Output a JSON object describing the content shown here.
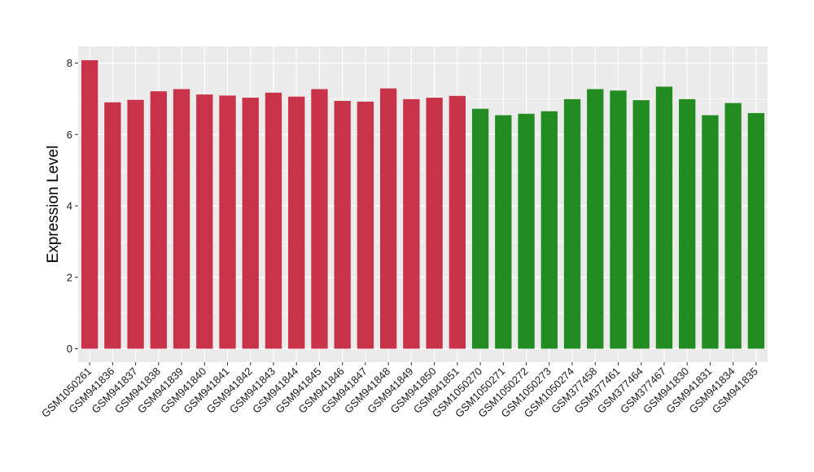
{
  "chart_data": {
    "type": "bar",
    "ylabel": "Expression Level",
    "xlabel": "",
    "title": "",
    "ylim": [
      0,
      8.3
    ],
    "yticks": [
      0,
      2,
      4,
      6,
      8
    ],
    "grid": true,
    "legend": "none",
    "colors": {
      "panel_background": "#ebebeb",
      "grid_major": "#ffffff",
      "group_a": "#c8334a",
      "group_b": "#228b22"
    },
    "categories": [
      "GSM1050261",
      "GSM941836",
      "GSM941837",
      "GSM941838",
      "GSM941839",
      "GSM941840",
      "GSM941841",
      "GSM941842",
      "GSM941843",
      "GSM941844",
      "GSM941845",
      "GSM941846",
      "GSM941847",
      "GSM941848",
      "GSM941849",
      "GSM941850",
      "GSM941851",
      "GSM1050270",
      "GSM1050271",
      "GSM1050272",
      "GSM1050273",
      "GSM1050274",
      "GSM377458",
      "GSM377461",
      "GSM377464",
      "GSM377467",
      "GSM941830",
      "GSM941831",
      "GSM941834",
      "GSM941835"
    ],
    "values": [
      8.08,
      6.9,
      6.97,
      7.21,
      7.27,
      7.12,
      7.09,
      7.03,
      7.17,
      7.06,
      7.27,
      6.94,
      6.92,
      7.29,
      6.99,
      7.03,
      7.08,
      6.72,
      6.54,
      6.58,
      6.65,
      6.99,
      7.27,
      7.23,
      6.96,
      7.34,
      6.99,
      6.54,
      6.88,
      6.6
    ],
    "bar_colors": [
      "#c8334a",
      "#c8334a",
      "#c8334a",
      "#c8334a",
      "#c8334a",
      "#c8334a",
      "#c8334a",
      "#c8334a",
      "#c8334a",
      "#c8334a",
      "#c8334a",
      "#c8334a",
      "#c8334a",
      "#c8334a",
      "#c8334a",
      "#c8334a",
      "#c8334a",
      "#228b22",
      "#228b22",
      "#228b22",
      "#228b22",
      "#228b22",
      "#228b22",
      "#228b22",
      "#228b22",
      "#228b22",
      "#228b22",
      "#228b22",
      "#228b22",
      "#228b22"
    ]
  }
}
